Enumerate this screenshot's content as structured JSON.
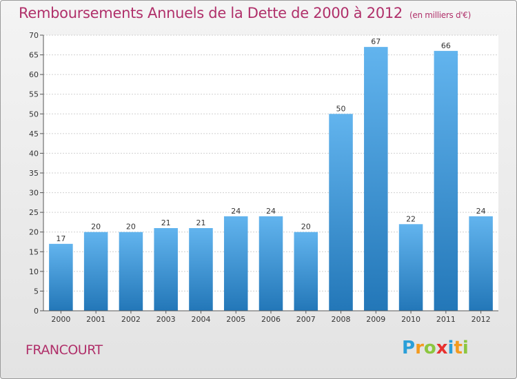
{
  "title": "Remboursements Annuels de la Dette de 2000 à 2012",
  "subtitle": "(en milliers d'€)",
  "commune": "FRANCOURT",
  "logo": {
    "letters": [
      "P",
      "r",
      "o",
      "x",
      "i",
      "t",
      "i"
    ],
    "colors": [
      "#2a9fd8",
      "#f39a1e",
      "#8cc63f",
      "#e8312f",
      "#2a9fd8",
      "#f39a1e",
      "#8cc63f"
    ]
  },
  "colors": {
    "bar_light": "#62b4ee",
    "bar_dark": "#2377b8",
    "title": "#b0306a"
  },
  "chart_data": {
    "type": "bar",
    "title": "Remboursements Annuels de la Dette de 2000 à 2012",
    "subtitle": "(en milliers d'€)",
    "categories": [
      "2000",
      "2001",
      "2002",
      "2003",
      "2004",
      "2005",
      "2006",
      "2007",
      "2008",
      "2009",
      "2010",
      "2011",
      "2012"
    ],
    "values": [
      17,
      20,
      20,
      21,
      21,
      24,
      24,
      20,
      50,
      67,
      22,
      66,
      24
    ],
    "ylim": [
      0,
      70
    ],
    "yticks": [
      0,
      5,
      10,
      15,
      20,
      25,
      30,
      35,
      40,
      45,
      50,
      55,
      60,
      65,
      70
    ],
    "grid": true,
    "legend": "none"
  }
}
